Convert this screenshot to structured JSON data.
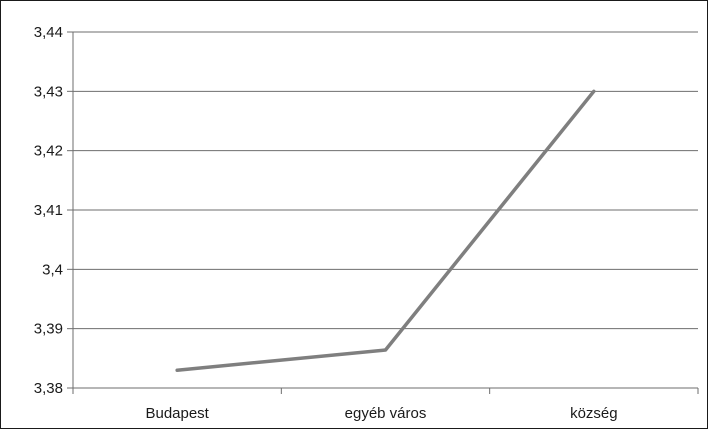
{
  "chart_data": {
    "type": "line",
    "title": "",
    "xlabel": "",
    "ylabel": "",
    "categories": [
      "Budapest",
      "egyéb város",
      "község"
    ],
    "series": [
      {
        "values": [
          3.383,
          3.3864,
          3.43
        ]
      }
    ],
    "ylim": [
      3.38,
      3.44
    ],
    "yticks": [
      "3,38",
      "3,39",
      "3,4",
      "3,41",
      "3,42",
      "3,43",
      "3,44"
    ],
    "grid": true,
    "legend": "none",
    "colors": {
      "line": "#7f7f7f",
      "grid": "#6e6e6e",
      "axis": "#6e6e6e"
    }
  }
}
